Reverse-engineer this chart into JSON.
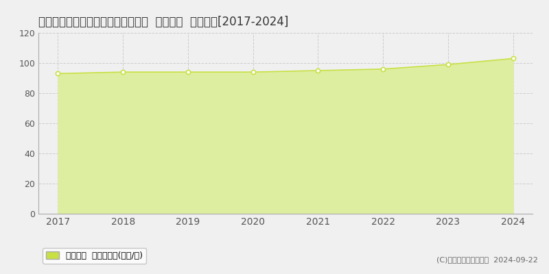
{
  "title": "兵庫県西宮市甲子園洲鳥町４３番１  基準地価  地価推移[2017-2024]",
  "years": [
    2017,
    2018,
    2019,
    2020,
    2021,
    2022,
    2023,
    2024
  ],
  "values": [
    93,
    94,
    94,
    94,
    95,
    96,
    99,
    103
  ],
  "ylim": [
    0,
    120
  ],
  "yticks": [
    0,
    20,
    40,
    60,
    80,
    100,
    120
  ],
  "line_color": "#c8e044",
  "fill_color": "#ddeea0",
  "marker_edge_color": "#c8e044",
  "bg_color": "#f0f0f0",
  "plot_bg_color": "#f0f0f0",
  "grid_color": "#cccccc",
  "title_fontsize": 12,
  "tick_fontsize": 9,
  "legend_label": "基準地価  平均坪単価(万円/坪)",
  "copyright_text": "(C)土地価格ドットコム  2024-09-22",
  "legend_marker_color": "#c8e044"
}
